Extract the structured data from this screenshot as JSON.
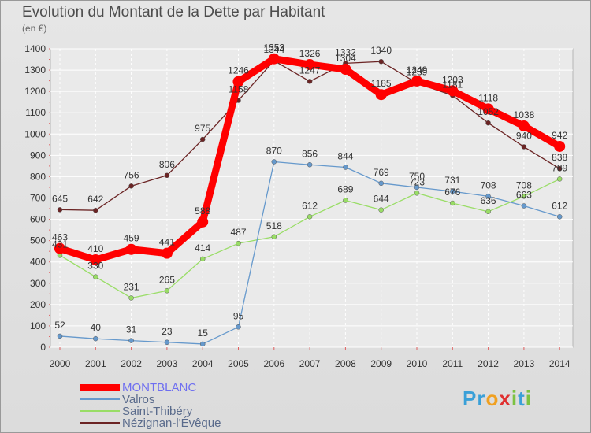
{
  "title": "Evolution du Montant de la Dette par Habitant",
  "unit": "(en €)",
  "logo": {
    "text": "Proxiti",
    "letters": [
      "P",
      "r",
      "o",
      "x",
      "i",
      "t",
      "i"
    ],
    "colors": [
      "#3aa0d8",
      "#3aa0d8",
      "#f0a020",
      "#e03030",
      "#7cc242",
      "#3aa0d8",
      "#7cc242"
    ]
  },
  "chart_data": {
    "type": "line",
    "x": [
      "2000",
      "2001",
      "2002",
      "2003",
      "2004",
      "2005",
      "2006",
      "2007",
      "2008",
      "2009",
      "2010",
      "2011",
      "2012",
      "2013",
      "2014"
    ],
    "ylim": [
      0,
      1400
    ],
    "yticks": [
      0,
      100,
      200,
      300,
      400,
      500,
      600,
      700,
      800,
      900,
      1000,
      1100,
      1200,
      1300,
      1400
    ],
    "grid": true,
    "legend": "bottom-left",
    "series": [
      {
        "name": "Nézignan-l'Évêque",
        "color": "#6b2424",
        "values": [
          645,
          642,
          756,
          806,
          975,
          1158,
          1344,
          1247,
          1332,
          1340,
          1239,
          1181,
          1052,
          940,
          838
        ],
        "labels": [
          "645",
          "642",
          "756",
          "806",
          "975",
          "1158",
          "1344",
          "1247",
          "1332",
          "1340",
          "1239",
          "1181",
          "1052",
          "940",
          "838"
        ]
      },
      {
        "name": "Saint-Thibéry",
        "color": "#99dd66",
        "values": [
          431,
          330,
          231,
          265,
          414,
          487,
          518,
          612,
          689,
          644,
          723,
          676,
          636,
          708,
          789
        ],
        "labels": [
          "431",
          "330",
          "231",
          "265",
          "414",
          "487",
          "518",
          "612",
          "689",
          "644",
          "723",
          "676",
          "636",
          "708",
          "789"
        ]
      },
      {
        "name": "Valros",
        "color": "#6699cc",
        "values": [
          52,
          40,
          31,
          23,
          15,
          95,
          870,
          856,
          844,
          769,
          750,
          731,
          708,
          663,
          612
        ],
        "labels": [
          "52",
          "40",
          "31",
          "23",
          "15",
          "95",
          "870",
          "856",
          "844",
          "769",
          "750",
          "731",
          "708",
          "663",
          "612"
        ]
      },
      {
        "name": "MONTBLANC",
        "color": "#ff0000",
        "values": [
          463,
          410,
          459,
          441,
          588,
          1246,
          1353,
          1326,
          1304,
          1185,
          1249,
          1203,
          1118,
          1038,
          942
        ],
        "labels": [
          "463",
          "410",
          "459",
          "441",
          "588",
          "1246",
          "1353",
          "1326",
          "1304",
          "1185",
          "1249",
          "1203",
          "1118",
          "1038",
          "942"
        ]
      }
    ]
  }
}
